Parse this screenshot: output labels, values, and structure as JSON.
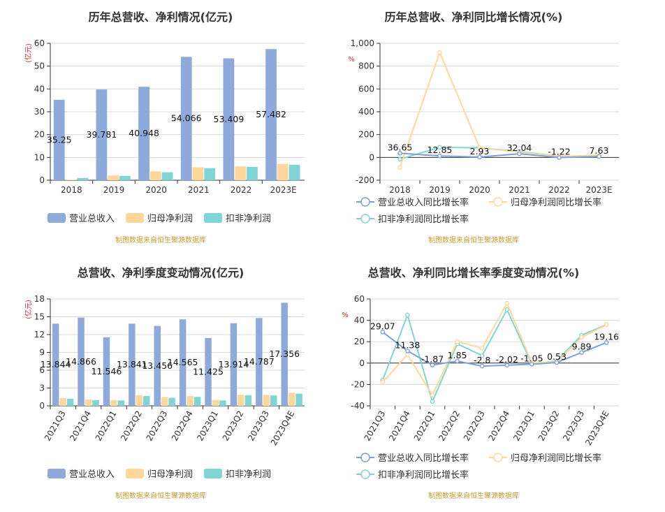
{
  "colors": {
    "revenue": "#8eaadb",
    "net_profit": "#ffd79b",
    "deducted_profit": "#7fd5d5",
    "revenue_line": "#7f9fdb",
    "grid": "#d9d9d9",
    "axis": "#333333"
  },
  "chart_data": [
    {
      "id": "annual_amount",
      "type": "bar",
      "title": "历年总营收、净利情况(亿元)",
      "unit_label": "(亿元)",
      "categories": [
        "2018",
        "2019",
        "2020",
        "2021",
        "2022",
        "2023E"
      ],
      "ylim": [
        0,
        60
      ],
      "yticks": [
        "0",
        "10",
        "20",
        "30",
        "40",
        "50",
        "60"
      ],
      "grid": true,
      "legend_position": "bottom",
      "series": [
        {
          "name": "营业总收入",
          "values": [
            35.25,
            39.781,
            40.948,
            54.066,
            53.409,
            57.482
          ]
        },
        {
          "name": "归母净利润",
          "values": [
            0.2,
            2.1,
            3.9,
            5.7,
            6.1,
            7.2
          ]
        },
        {
          "name": "扣非净利润",
          "values": [
            1.0,
            1.9,
            3.5,
            5.3,
            5.8,
            6.8
          ]
        }
      ],
      "data_labels": [
        "35.25",
        "39.781",
        "40.948",
        "54.066",
        "53.409",
        "57.482"
      ],
      "source": "制图数据来自恒生聚源数据库"
    },
    {
      "id": "annual_growth",
      "type": "line",
      "title": "历年总营收、净利同比增长情况(%)",
      "unit_label": "%",
      "categories": [
        "2018",
        "2019",
        "2020",
        "2021",
        "2022",
        "2023E"
      ],
      "ylim": [
        -200,
        1000
      ],
      "yticks": [
        "-200",
        "0",
        "200",
        "400",
        "600",
        "800",
        "1,000"
      ],
      "grid": true,
      "legend_position": "bottom",
      "series": [
        {
          "name": "营业总收入同比增长率",
          "values": [
            36.65,
            12.85,
            2.93,
            32.04,
            -1.22,
            7.63
          ]
        },
        {
          "name": "归母净利润同比增长率",
          "values": [
            -88,
            920,
            85,
            46,
            8,
            18
          ]
        },
        {
          "name": "扣非净利润同比增长率",
          "values": [
            -15,
            88,
            84,
            52,
            9,
            17
          ]
        }
      ],
      "data_labels": [
        "36.65",
        "12.85",
        "2.93",
        "32.04",
        "-1.22",
        "7.63"
      ],
      "source": "制图数据来自恒生聚源数据库"
    },
    {
      "id": "quarterly_amount",
      "type": "bar",
      "title": "总营收、净利季度变动情况(亿元)",
      "unit_label": "(亿元)",
      "categories": [
        "2021Q3",
        "2021Q4",
        "2022Q1",
        "2022Q2",
        "2022Q3",
        "2022Q4",
        "2023Q1",
        "2023Q2",
        "2023Q3",
        "2023Q4E"
      ],
      "ylim": [
        0,
        18
      ],
      "yticks": [
        "0",
        "3",
        "6",
        "9",
        "12",
        "15",
        "18"
      ],
      "grid": true,
      "legend_position": "bottom",
      "series": [
        {
          "name": "营业总收入",
          "values": [
            13.844,
            14.866,
            11.546,
            13.841,
            13.456,
            14.565,
            11.425,
            13.914,
            14.787,
            17.356
          ]
        },
        {
          "name": "归母净利润",
          "values": [
            1.3,
            1.05,
            1.0,
            1.8,
            1.45,
            1.65,
            1.0,
            1.85,
            1.85,
            2.2
          ]
        },
        {
          "name": "扣非净利润",
          "values": [
            1.2,
            0.95,
            0.9,
            1.65,
            1.35,
            1.5,
            0.9,
            1.75,
            1.75,
            2.05
          ]
        }
      ],
      "data_labels": [
        "13.844",
        "14.866",
        "11.546",
        "13.841",
        "13.456",
        "14.565",
        "11.425",
        "13.914",
        "14.787",
        "17.356"
      ],
      "source": "制图数据来自恒生聚源数据库"
    },
    {
      "id": "quarterly_growth",
      "type": "line",
      "title": "总营收、净利同比增长率季度变动情况(%)",
      "unit_label": "%",
      "categories": [
        "2021Q3",
        "2021Q4",
        "2022Q1",
        "2022Q2",
        "2022Q3",
        "2022Q4",
        "2023Q1",
        "2023Q2",
        "2023Q3",
        "2023Q4E"
      ],
      "ylim": [
        -40,
        60
      ],
      "yticks": [
        "-40",
        "-20",
        "0",
        "20",
        "40",
        "60"
      ],
      "grid": true,
      "legend_position": "bottom",
      "series": [
        {
          "name": "营业总收入同比增长率",
          "values": [
            29.07,
            11.38,
            -1.87,
            1.85,
            -2.8,
            -2.02,
            -1.05,
            0.53,
            9.89,
            19.16
          ]
        },
        {
          "name": "归母净利润同比增长率",
          "values": [
            -18,
            8,
            -30,
            20,
            14,
            56,
            0,
            1,
            24,
            36
          ]
        },
        {
          "name": "扣非净利润同比增长率",
          "values": [
            -16,
            45,
            -36,
            18,
            7,
            50,
            -1,
            2,
            26,
            36
          ]
        }
      ],
      "data_labels": [
        "29.07",
        "11.38",
        "-1.87",
        "1.85",
        "-2.8",
        "-2.02",
        "-1.05",
        "0.53",
        "9.89",
        "19.16"
      ],
      "source": "制图数据来自恒生聚源数据库"
    }
  ]
}
